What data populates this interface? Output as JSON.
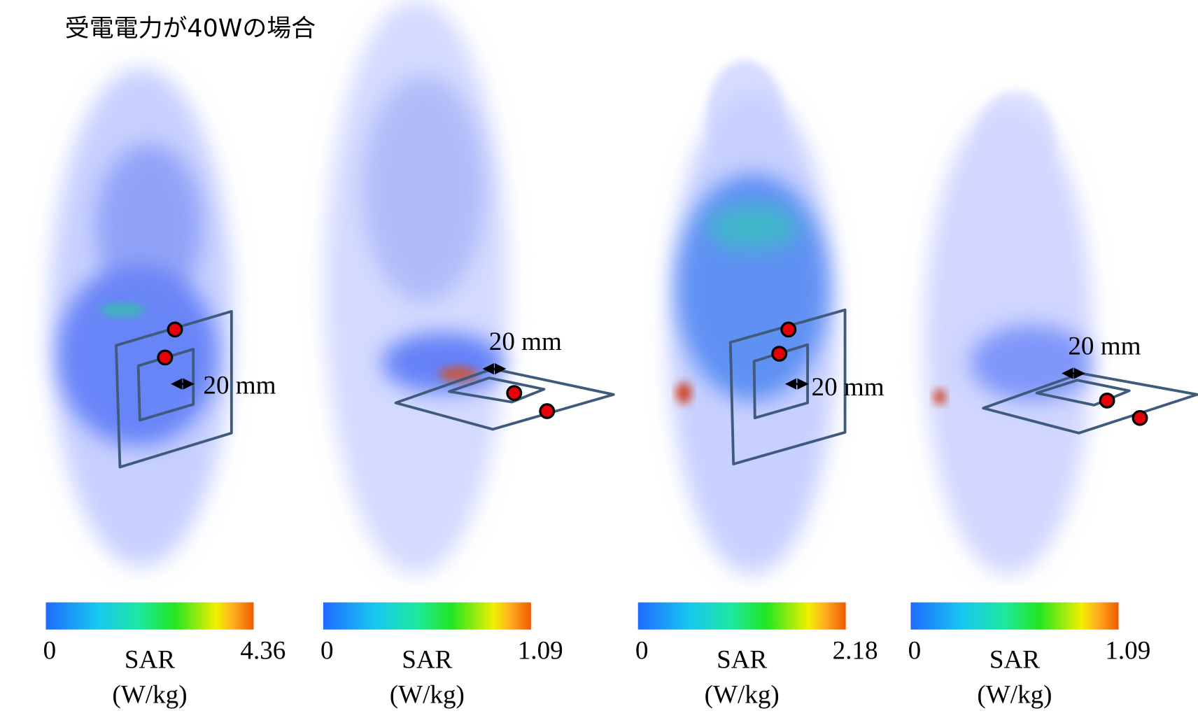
{
  "title": "受電電力が40Wの場合",
  "panels": [
    {
      "distance_label": "20 mm",
      "colorbar": {
        "min": 0,
        "max": 4.36,
        "label": "SAR",
        "unit": "(W/kg)"
      }
    },
    {
      "distance_label": "20 mm",
      "colorbar": {
        "min": 0,
        "max": 1.09,
        "label": "SAR",
        "unit": "(W/kg)"
      }
    },
    {
      "distance_label": "20 mm",
      "colorbar": {
        "min": 0,
        "max": 2.18,
        "label": "SAR",
        "unit": "(W/kg)"
      }
    },
    {
      "distance_label": "20 mm",
      "colorbar": {
        "min": 0,
        "max": 1.09,
        "label": "SAR",
        "unit": "(W/kg)"
      }
    }
  ]
}
